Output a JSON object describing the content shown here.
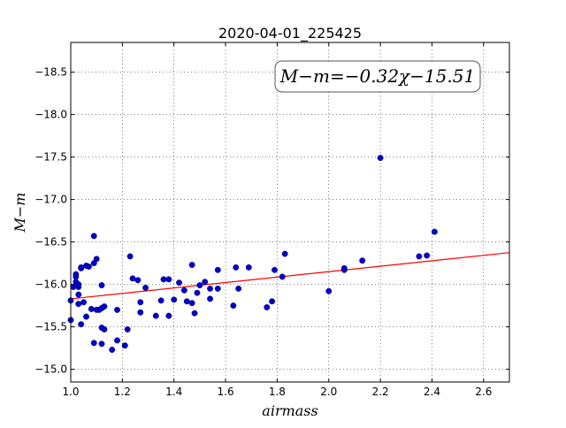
{
  "chart_data": {
    "type": "scatter",
    "title": "2020-04-01_225425",
    "xlabel": "airmass",
    "ylabel": "M−m",
    "xlim": [
      1.0,
      2.7
    ],
    "ylim": [
      -18.85,
      -14.85
    ],
    "y_inverted": true,
    "grid": true,
    "x_ticks": [
      1.0,
      1.2,
      1.4,
      1.6,
      1.8,
      2.0,
      2.2,
      2.4,
      2.6
    ],
    "x_tick_labels": [
      "1.0",
      "1.2",
      "1.4",
      "1.6",
      "1.8",
      "2.0",
      "2.2",
      "2.4",
      "2.6"
    ],
    "y_ticks": [
      -15.0,
      -15.5,
      -16.0,
      -16.5,
      -17.0,
      -17.5,
      -18.0,
      -18.5
    ],
    "y_tick_labels": [
      "−15.0",
      "−15.5",
      "−16.0",
      "−16.5",
      "−17.0",
      "−17.5",
      "−18.0",
      "−18.5"
    ],
    "annotation": "M−m=−0.32χ−15.51",
    "annotation_placement": "top-right",
    "fit_line": {
      "slope": -0.32,
      "intercept": -15.51,
      "color": "#ff0000"
    },
    "point_color": "#0000cc",
    "points": [
      [
        1.0,
        -15.58
      ],
      [
        1.0,
        -15.81
      ],
      [
        1.01,
        -15.97
      ],
      [
        1.02,
        -16.03
      ],
      [
        1.02,
        -16.09
      ],
      [
        1.02,
        -16.12
      ],
      [
        1.03,
        -15.97
      ],
      [
        1.03,
        -16.0
      ],
      [
        1.03,
        -15.88
      ],
      [
        1.03,
        -15.77
      ],
      [
        1.04,
        -15.53
      ],
      [
        1.04,
        -16.2
      ],
      [
        1.04,
        -16.19
      ],
      [
        1.05,
        -15.79
      ],
      [
        1.06,
        -15.62
      ],
      [
        1.06,
        -16.22
      ],
      [
        1.07,
        -16.21
      ],
      [
        1.08,
        -15.71
      ],
      [
        1.09,
        -15.31
      ],
      [
        1.09,
        -16.25
      ],
      [
        1.09,
        -16.57
      ],
      [
        1.1,
        -16.3
      ],
      [
        1.1,
        -15.7
      ],
      [
        1.11,
        -15.7
      ],
      [
        1.12,
        -15.49
      ],
      [
        1.12,
        -15.3
      ],
      [
        1.13,
        -15.47
      ],
      [
        1.12,
        -15.72
      ],
      [
        1.13,
        -15.74
      ],
      [
        1.12,
        -15.99
      ],
      [
        1.16,
        -15.23
      ],
      [
        1.18,
        -15.34
      ],
      [
        1.18,
        -15.7
      ],
      [
        1.21,
        -15.28
      ],
      [
        1.22,
        -15.47
      ],
      [
        1.23,
        -16.33
      ],
      [
        1.24,
        -16.07
      ],
      [
        1.26,
        -16.05
      ],
      [
        1.27,
        -15.67
      ],
      [
        1.27,
        -15.79
      ],
      [
        1.29,
        -15.96
      ],
      [
        1.33,
        -15.63
      ],
      [
        1.35,
        -15.81
      ],
      [
        1.36,
        -16.06
      ],
      [
        1.38,
        -15.63
      ],
      [
        1.38,
        -16.06
      ],
      [
        1.4,
        -15.82
      ],
      [
        1.42,
        -16.02
      ],
      [
        1.44,
        -15.93
      ],
      [
        1.45,
        -15.8
      ],
      [
        1.47,
        -15.78
      ],
      [
        1.47,
        -16.23
      ],
      [
        1.48,
        -15.66
      ],
      [
        1.49,
        -15.9
      ],
      [
        1.5,
        -15.99
      ],
      [
        1.52,
        -16.03
      ],
      [
        1.54,
        -15.95
      ],
      [
        1.54,
        -15.83
      ],
      [
        1.57,
        -15.95
      ],
      [
        1.57,
        -16.17
      ],
      [
        1.63,
        -15.75
      ],
      [
        1.64,
        -16.2
      ],
      [
        1.65,
        -15.95
      ],
      [
        1.69,
        -16.2
      ],
      [
        1.76,
        -15.73
      ],
      [
        1.78,
        -15.8
      ],
      [
        1.79,
        -16.17
      ],
      [
        1.82,
        -16.09
      ],
      [
        1.83,
        -16.36
      ],
      [
        2.0,
        -15.92
      ],
      [
        2.06,
        -16.17
      ],
      [
        2.06,
        -16.19
      ],
      [
        2.13,
        -16.28
      ],
      [
        2.2,
        -17.49
      ],
      [
        2.35,
        -16.33
      ],
      [
        2.38,
        -16.34
      ],
      [
        2.41,
        -16.62
      ]
    ]
  }
}
